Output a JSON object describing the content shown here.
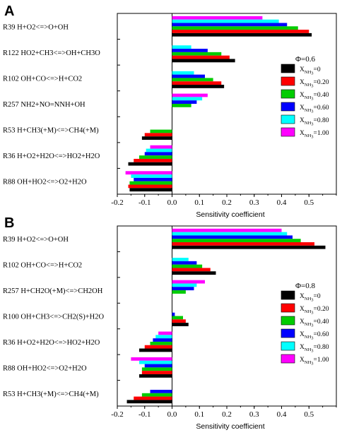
{
  "series_names_markup": [
    {
      "main": "X",
      "sub": "NH",
      "subsub": "3",
      "val": "=0"
    },
    {
      "main": "X",
      "sub": "NH",
      "subsub": "3",
      "val": "=0.20"
    },
    {
      "main": "X",
      "sub": "NH",
      "subsub": "3",
      "val": "=0.40"
    },
    {
      "main": "X",
      "sub": "NH",
      "subsub": "3",
      "val": "=0.60"
    },
    {
      "main": "X",
      "sub": "NH",
      "subsub": "3",
      "val": "=0.80"
    },
    {
      "main": "X",
      "sub": "NH",
      "subsub": "3",
      "val": "=1.00"
    }
  ],
  "colors": [
    "#000000",
    "#ff0000",
    "#00cc00",
    "#0000ff",
    "#00ffff",
    "#ff00ff"
  ],
  "chart_data": [
    {
      "type": "bar",
      "orientation": "horizontal",
      "panel_label": "A",
      "legend_title": "Φ=0.6",
      "xlabel": "Sensitivity coefficient",
      "xlim": [
        -0.2,
        0.6
      ],
      "xticks": [
        "-0.2",
        "-0.1",
        "0.0",
        "0.1",
        "0.2",
        "0.3",
        "0.4",
        "0.5"
      ],
      "grid": false,
      "legend_position": "right",
      "categories": [
        "R39 H+O2<=>O+OH",
        "R122 HO2+CH3<=>OH+CH3O",
        "R102 OH+CO<=>H+CO2",
        "R257 NH2+NO=NNH+OH",
        "R53 H+CH3(+M)<=>CH4(+M)",
        "R36 H+O2+H2O<=>HO2+H2O",
        "R88 OH+HO2<=>O2+H2O"
      ],
      "series": [
        {
          "name": "XNH3=0",
          "values": [
            0.51,
            0.23,
            0.19,
            0.0,
            -0.11,
            -0.16,
            -0.155
          ]
        },
        {
          "name": "XNH3=0.20",
          "values": [
            0.5,
            0.21,
            0.18,
            0.0,
            -0.1,
            -0.14,
            -0.16
          ]
        },
        {
          "name": "XNH3=0.40",
          "values": [
            0.46,
            0.18,
            0.15,
            0.07,
            -0.08,
            -0.12,
            -0.155
          ]
        },
        {
          "name": "XNH3=0.60",
          "values": [
            0.42,
            0.13,
            0.12,
            0.09,
            0.0,
            -0.1,
            -0.14
          ]
        },
        {
          "name": "XNH3=0.80",
          "values": [
            0.39,
            0.07,
            0.08,
            0.11,
            0.0,
            -0.095,
            -0.15
          ]
        },
        {
          "name": "XNH3=1.00",
          "values": [
            0.33,
            0.0,
            0.0,
            0.13,
            0.0,
            -0.08,
            -0.17
          ]
        }
      ]
    },
    {
      "type": "bar",
      "orientation": "horizontal",
      "panel_label": "B",
      "legend_title": "Φ=0.8",
      "xlabel": "Sensitivity coefficient",
      "xlim": [
        -0.2,
        0.6
      ],
      "xticks": [
        "-0.2",
        "-0.1",
        "0.0",
        "0.1",
        "0.2",
        "0.3",
        "0.4",
        "0.5"
      ],
      "grid": false,
      "legend_position": "right",
      "categories": [
        "R39 H+O2<=>O+OH",
        "R102 OH+CO<=>H+CO2",
        "R257 H+CH2O(+M)<=>CH2OH",
        "R100 OH+CH3<=>CH2(S)+H2O",
        "R36 H+O2+H2O<=>HO2+H2O",
        "R88 OH+HO2<=>O2+H2O",
        "R53 H+CH3(+M)<=>CH4(+M)"
      ],
      "series": [
        {
          "name": "XNH3=0",
          "values": [
            0.56,
            0.16,
            0.0,
            0.06,
            -0.12,
            -0.12,
            -0.165
          ]
        },
        {
          "name": "XNH3=0.20",
          "values": [
            0.52,
            0.14,
            0.0,
            0.05,
            -0.1,
            -0.11,
            -0.14
          ]
        },
        {
          "name": "XNH3=0.40",
          "values": [
            0.47,
            0.11,
            0.05,
            0.04,
            -0.08,
            -0.11,
            -0.11
          ]
        },
        {
          "name": "XNH3=0.60",
          "values": [
            0.44,
            0.09,
            0.08,
            0.01,
            -0.07,
            -0.1,
            -0.08
          ]
        },
        {
          "name": "XNH3=0.80",
          "values": [
            0.42,
            0.06,
            0.09,
            0.0,
            -0.06,
            -0.12,
            0.0
          ]
        },
        {
          "name": "XNH3=1.00",
          "values": [
            0.4,
            0.0,
            0.12,
            0.0,
            -0.05,
            -0.15,
            0.0
          ]
        }
      ]
    }
  ]
}
